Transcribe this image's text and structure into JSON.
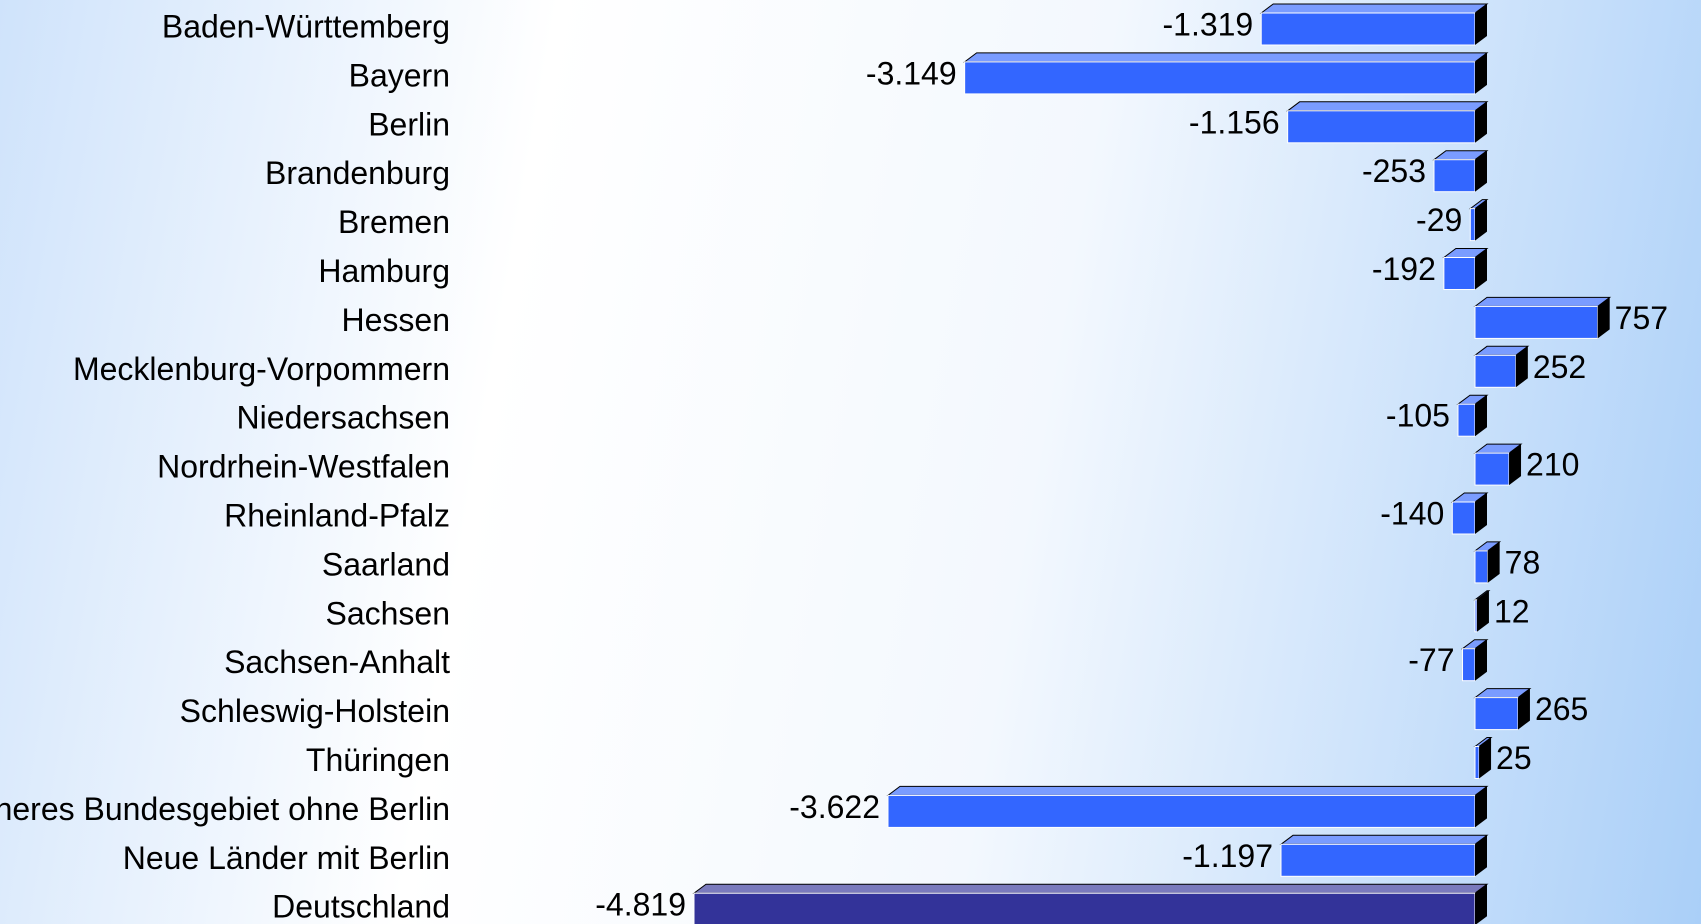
{
  "chart_data": {
    "type": "bar",
    "orientation": "horizontal",
    "categories": [
      "Baden-Württemberg",
      "Bayern",
      "Berlin",
      "Brandenburg",
      "Bremen",
      "Hamburg",
      "Hessen",
      "Mecklenburg-Vorpommern",
      "Niedersachsen",
      "Nordrhein-Westfalen",
      "Rheinland-Pfalz",
      "Saarland",
      "Sachsen",
      "Sachsen-Anhalt",
      "Schleswig-Holstein",
      "Thüringen",
      "Früheres Bundesgebiet ohne Berlin",
      "Neue Länder mit Berlin",
      "Deutschland"
    ],
    "values": [
      -1319,
      -3149,
      -1156,
      -253,
      -29,
      -192,
      757,
      252,
      -105,
      210,
      -140,
      78,
      12,
      -77,
      265,
      25,
      -3622,
      -1197,
      -4819
    ],
    "value_labels": [
      "-1.319",
      "-3.149",
      "-1.156",
      "-253",
      "-29",
      "-192",
      "757",
      "252",
      "-105",
      "210",
      "-140",
      "78",
      "12",
      "-77",
      "265",
      "25",
      "-3.622",
      "-1.197",
      "-4.819"
    ],
    "colors": [
      "#3366ff",
      "#3366ff",
      "#3366ff",
      "#3366ff",
      "#3366ff",
      "#3366ff",
      "#3366ff",
      "#3366ff",
      "#3366ff",
      "#3366ff",
      "#3366ff",
      "#3366ff",
      "#3366ff",
      "#3366ff",
      "#3366ff",
      "#3366ff",
      "#3366ff",
      "#3366ff",
      "#333399"
    ]
  }
}
